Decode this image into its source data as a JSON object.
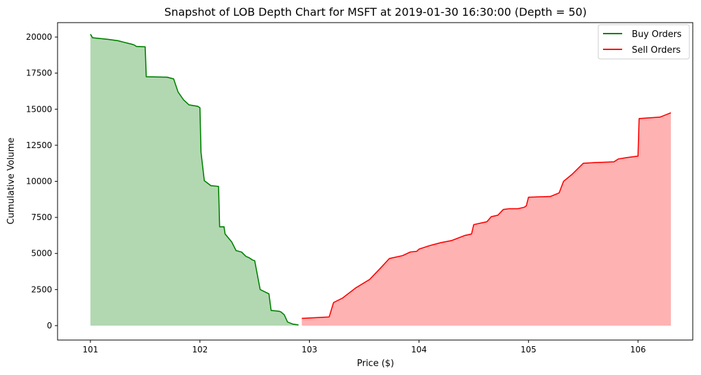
{
  "chart_data": {
    "type": "area",
    "title": "Snapshot of LOB Depth Chart for MSFT at 2019-01-30 16:30:00 (Depth = 50)",
    "xlabel": "Price ($)",
    "ylabel": "Cumulative Volume",
    "xlim": [
      100.7,
      106.5
    ],
    "ylim": [
      -1000,
      21000
    ],
    "xticks": [
      101,
      102,
      103,
      104,
      105,
      106
    ],
    "yticks": [
      0,
      2500,
      5000,
      7500,
      10000,
      12500,
      15000,
      17500,
      20000
    ],
    "xtick_labels": [
      "101",
      "102",
      "103",
      "104",
      "105",
      "106"
    ],
    "ytick_labels": [
      "0",
      "2500",
      "5000",
      "7500",
      "10000",
      "12500",
      "15000",
      "17500",
      "20000"
    ],
    "grid": false,
    "legend": {
      "placement": "top-right"
    },
    "series": [
      {
        "name": "Buy Orders",
        "color": "#008000",
        "fill": "#b2d8b2",
        "x": [
          101.0,
          101.02,
          101.15,
          101.25,
          101.3,
          101.38,
          101.4,
          101.42,
          101.5,
          101.51,
          101.7,
          101.76,
          101.8,
          101.85,
          101.9,
          101.98,
          102.0,
          102.01,
          102.04,
          102.1,
          102.17,
          102.18,
          102.22,
          102.23,
          102.29,
          102.33,
          102.38,
          102.42,
          102.45,
          102.48,
          102.5,
          102.55,
          102.63,
          102.65,
          102.72,
          102.74,
          102.77,
          102.8,
          102.85,
          102.9
        ],
        "y": [
          20200,
          19950,
          19850,
          19750,
          19650,
          19500,
          19450,
          19350,
          19320,
          17250,
          17220,
          17100,
          16200,
          15650,
          15300,
          15200,
          15100,
          12000,
          10050,
          9700,
          9650,
          6850,
          6850,
          6350,
          5800,
          5200,
          5100,
          4800,
          4700,
          4550,
          4500,
          2500,
          2200,
          1050,
          1000,
          950,
          750,
          250,
          100,
          50
        ]
      },
      {
        "name": "Sell Orders",
        "color": "#ff0000",
        "fill": "#ffb2b2",
        "x": [
          102.93,
          103.18,
          103.22,
          103.3,
          103.42,
          103.55,
          103.65,
          103.73,
          103.85,
          103.92,
          103.98,
          104.0,
          104.1,
          104.15,
          104.2,
          104.3,
          104.42,
          104.48,
          104.5,
          104.62,
          104.66,
          104.72,
          104.77,
          104.82,
          104.85,
          104.9,
          104.96,
          104.98,
          105.0,
          105.2,
          105.28,
          105.32,
          105.4,
          105.5,
          105.6,
          105.78,
          105.82,
          105.9,
          106.0,
          106.01,
          106.2,
          106.25,
          106.3
        ],
        "y": [
          500,
          600,
          1600,
          1900,
          2600,
          3200,
          4000,
          4650,
          4850,
          5100,
          5150,
          5300,
          5550,
          5650,
          5750,
          5900,
          6250,
          6350,
          7000,
          7200,
          7550,
          7650,
          8050,
          8100,
          8100,
          8100,
          8200,
          8300,
          8900,
          8950,
          9200,
          10000,
          10500,
          11250,
          11300,
          11350,
          11550,
          11650,
          11750,
          14350,
          14450,
          14600,
          14750
        ]
      }
    ]
  }
}
